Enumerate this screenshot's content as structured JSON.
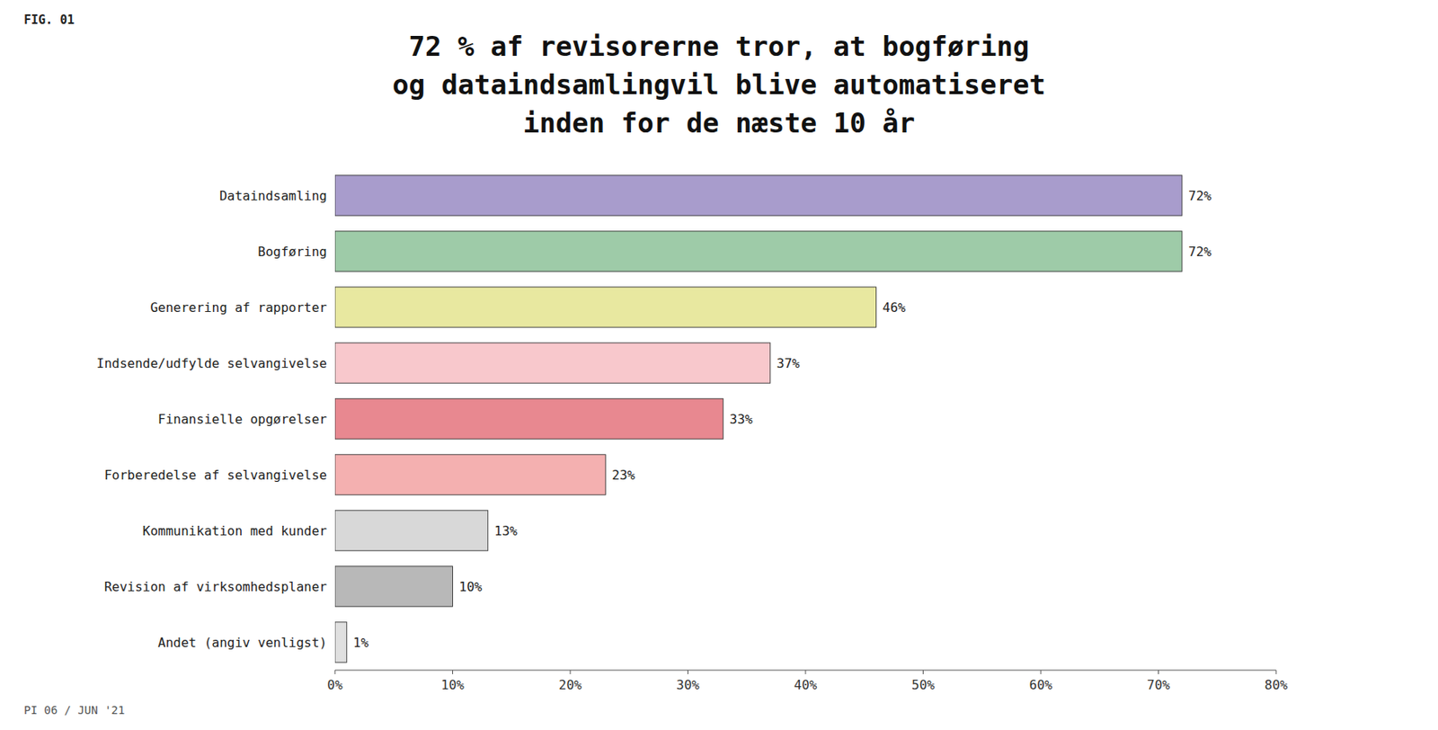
{
  "chart_data": {
    "type": "bar",
    "orientation": "horizontal",
    "title": "72 % af revisorerne tror, at bogføring\nog dataindsamlingvil blive automatiseret\ninden for de næste 10 år",
    "annotations": [
      "FIG. 01",
      "PI 06 / JUN '21"
    ],
    "categories": [
      "Dataindsamling",
      "Bogføring",
      "Generering af rapporter",
      "Indsende/udfylde selvangivelse",
      "Finansielle opgørelser",
      "Forberedelse af selvangivelse",
      "Kommunikation med kunder",
      "Revision af virksomhedsplaner",
      "Andet (angiv venligst)"
    ],
    "values": [
      72,
      72,
      46,
      37,
      33,
      23,
      13,
      10,
      1
    ],
    "value_labels": [
      "72%",
      "72%",
      "46%",
      "37%",
      "33%",
      "23%",
      "13%",
      "10%",
      "1%"
    ],
    "colors": [
      "#a89ccc",
      "#9ecba8",
      "#e8e8a0",
      "#f8c8cc",
      "#e88890",
      "#f4b0b0",
      "#d8d8d8",
      "#b8b8b8",
      "#e0e0e0"
    ],
    "data_labels": true,
    "xlim": [
      0,
      80
    ],
    "xticks": [
      {
        "value": 0,
        "label": "0%"
      },
      {
        "value": 10,
        "label": "10%"
      },
      {
        "value": 20,
        "label": "20%"
      },
      {
        "value": 30,
        "label": "30%"
      },
      {
        "value": 40,
        "label": "40%"
      },
      {
        "value": 50,
        "label": "50%"
      },
      {
        "value": 60,
        "label": "60%"
      },
      {
        "value": 70,
        "label": "70%"
      },
      {
        "value": 80,
        "label": "80%"
      }
    ],
    "grid": false
  }
}
